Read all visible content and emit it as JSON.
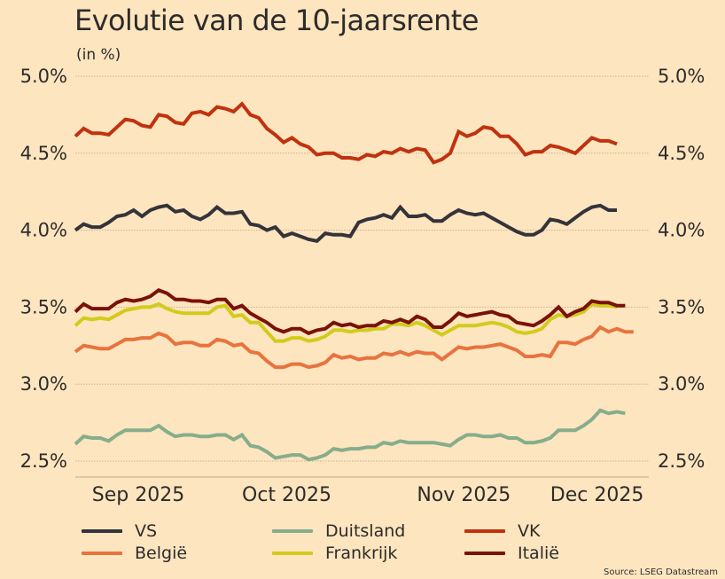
{
  "header": {
    "title": "Evolutie van de 10-jaarsrente",
    "subtitle": "(in %)"
  },
  "source": "Source: LSEG Datastream",
  "chart_data": {
    "type": "line",
    "title": "Evolutie van de 10-jaarsrente",
    "subtitle": "(in %)",
    "xlabel": "",
    "ylabel": "",
    "ylim": [
      2.5,
      5.0
    ],
    "yticks": [
      {
        "value": 5.0,
        "label": "5.0%"
      },
      {
        "value": 4.5,
        "label": "4.5%"
      },
      {
        "value": 4.0,
        "label": "4.0%"
      },
      {
        "value": 3.5,
        "label": "3.5%"
      },
      {
        "value": 3.0,
        "label": "3.0%"
      },
      {
        "value": 2.5,
        "label": "2.5%"
      }
    ],
    "xlim": [
      0,
      65
    ],
    "xticks": [
      {
        "value": 2,
        "label": "Sep 2025"
      },
      {
        "value": 20,
        "label": "Oct 2025"
      },
      {
        "value": 41,
        "label": "Nov 2025"
      },
      {
        "value": 57,
        "label": "Dec 2025"
      }
    ],
    "grid": "horizontal dotted",
    "legend_position": "bottom",
    "series": [
      {
        "name": "VS",
        "color": "#35333a",
        "values": [
          4.0,
          4.04,
          4.02,
          4.02,
          4.05,
          4.09,
          4.1,
          4.13,
          4.09,
          4.13,
          4.15,
          4.16,
          4.12,
          4.13,
          4.09,
          4.07,
          4.1,
          4.15,
          4.11,
          4.11,
          4.12,
          4.04,
          4.03,
          4.0,
          4.02,
          3.96,
          3.98,
          3.96,
          3.94,
          3.93,
          3.98,
          3.97,
          3.97,
          3.96,
          4.05,
          4.07,
          4.08,
          4.1,
          4.08,
          4.15,
          4.09,
          4.09,
          4.1,
          4.06,
          4.06,
          4.1,
          4.13,
          4.11,
          4.1,
          4.11,
          4.08,
          4.05,
          4.02,
          3.99,
          3.97,
          3.97,
          4.0,
          4.07,
          4.06,
          4.04,
          4.08,
          4.12,
          4.15,
          4.16,
          4.13,
          4.13
        ]
      },
      {
        "name": "Duitsland",
        "color": "#86ad8c",
        "values": [
          2.61,
          2.66,
          2.65,
          2.65,
          2.63,
          2.67,
          2.7,
          2.7,
          2.7,
          2.7,
          2.73,
          2.69,
          2.66,
          2.67,
          2.67,
          2.66,
          2.66,
          2.67,
          2.67,
          2.64,
          2.67,
          2.6,
          2.59,
          2.56,
          2.52,
          2.53,
          2.54,
          2.54,
          2.51,
          2.52,
          2.54,
          2.58,
          2.57,
          2.58,
          2.58,
          2.59,
          2.59,
          2.62,
          2.61,
          2.63,
          2.62,
          2.62,
          2.62,
          2.62,
          2.61,
          2.6,
          2.64,
          2.67,
          2.67,
          2.66,
          2.66,
          2.67,
          2.65,
          2.65,
          2.62,
          2.62,
          2.63,
          2.65,
          2.7,
          2.7,
          2.7,
          2.73,
          2.77,
          2.83,
          2.81,
          2.82,
          2.81
        ]
      },
      {
        "name": "VK",
        "color": "#c0320f",
        "values": [
          4.61,
          4.66,
          4.63,
          4.63,
          4.62,
          4.67,
          4.72,
          4.71,
          4.68,
          4.67,
          4.75,
          4.74,
          4.7,
          4.69,
          4.76,
          4.77,
          4.75,
          4.8,
          4.79,
          4.77,
          4.82,
          4.75,
          4.73,
          4.66,
          4.62,
          4.57,
          4.6,
          4.56,
          4.54,
          4.49,
          4.5,
          4.5,
          4.47,
          4.47,
          4.46,
          4.49,
          4.48,
          4.51,
          4.5,
          4.53,
          4.51,
          4.53,
          4.52,
          4.44,
          4.46,
          4.5,
          4.64,
          4.61,
          4.63,
          4.67,
          4.66,
          4.61,
          4.61,
          4.56,
          4.49,
          4.51,
          4.51,
          4.55,
          4.54,
          4.52,
          4.5,
          4.55,
          4.6,
          4.58,
          4.58,
          4.56
        ]
      },
      {
        "name": "België",
        "color": "#e8733e",
        "values": [
          3.21,
          3.25,
          3.24,
          3.23,
          3.23,
          3.26,
          3.29,
          3.29,
          3.3,
          3.3,
          3.33,
          3.31,
          3.26,
          3.27,
          3.27,
          3.25,
          3.25,
          3.29,
          3.28,
          3.25,
          3.26,
          3.21,
          3.2,
          3.15,
          3.11,
          3.11,
          3.13,
          3.13,
          3.11,
          3.12,
          3.14,
          3.19,
          3.17,
          3.18,
          3.16,
          3.17,
          3.17,
          3.2,
          3.19,
          3.21,
          3.19,
          3.21,
          3.2,
          3.2,
          3.16,
          3.2,
          3.24,
          3.23,
          3.24,
          3.24,
          3.25,
          3.26,
          3.24,
          3.22,
          3.18,
          3.18,
          3.19,
          3.18,
          3.27,
          3.27,
          3.26,
          3.29,
          3.31,
          3.37,
          3.34,
          3.36,
          3.34,
          3.34
        ]
      },
      {
        "name": "Frankrijk",
        "color": "#d2cb1c",
        "values": [
          3.38,
          3.43,
          3.42,
          3.43,
          3.42,
          3.45,
          3.48,
          3.49,
          3.5,
          3.5,
          3.52,
          3.49,
          3.47,
          3.46,
          3.46,
          3.46,
          3.46,
          3.5,
          3.51,
          3.44,
          3.45,
          3.4,
          3.4,
          3.34,
          3.28,
          3.28,
          3.3,
          3.3,
          3.28,
          3.29,
          3.31,
          3.35,
          3.35,
          3.34,
          3.35,
          3.35,
          3.36,
          3.36,
          3.39,
          3.39,
          3.38,
          3.4,
          3.38,
          3.35,
          3.32,
          3.35,
          3.38,
          3.38,
          3.38,
          3.39,
          3.4,
          3.39,
          3.37,
          3.34,
          3.33,
          3.34,
          3.36,
          3.42,
          3.45,
          3.44,
          3.45,
          3.47,
          3.52,
          3.51,
          3.51,
          3.5
        ]
      },
      {
        "name": "Italië",
        "color": "#7a1208",
        "values": [
          3.47,
          3.52,
          3.49,
          3.49,
          3.49,
          3.53,
          3.55,
          3.54,
          3.55,
          3.57,
          3.61,
          3.59,
          3.55,
          3.55,
          3.54,
          3.54,
          3.53,
          3.55,
          3.55,
          3.49,
          3.51,
          3.46,
          3.43,
          3.4,
          3.36,
          3.34,
          3.36,
          3.36,
          3.33,
          3.35,
          3.36,
          3.4,
          3.38,
          3.39,
          3.37,
          3.38,
          3.38,
          3.41,
          3.4,
          3.42,
          3.4,
          3.44,
          3.42,
          3.37,
          3.37,
          3.41,
          3.46,
          3.44,
          3.45,
          3.46,
          3.47,
          3.45,
          3.44,
          3.4,
          3.39,
          3.38,
          3.41,
          3.45,
          3.5,
          3.44,
          3.47,
          3.49,
          3.54,
          3.53,
          3.53,
          3.51,
          3.51
        ]
      }
    ]
  }
}
